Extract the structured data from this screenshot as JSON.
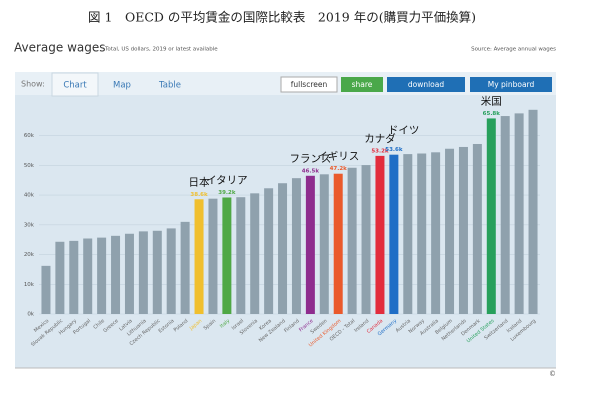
{
  "page_title": "図 1　OECD の平均賃金の国際比較表　2019 年の(購買力平価換算)",
  "header": {
    "title": "Average wages",
    "subtitle": "Total, US dollars, 2019 or latest available",
    "source": "Source: Average annual wages"
  },
  "toolbar": {
    "show": "Show:",
    "tabs": [
      "Chart",
      "Map",
      "Table"
    ],
    "buttons": [
      "fullscreen",
      "share",
      "download",
      "My pinboard"
    ]
  },
  "copyright": "©",
  "chart_data": {
    "type": "bar",
    "categories": [
      "Mexico",
      "Slovak Republic",
      "Hungary",
      "Portugal",
      "Chile",
      "Greece",
      "Latvia",
      "Lithuania",
      "Czech Republic",
      "Estonia",
      "Poland",
      "Japan",
      "Spain",
      "Italy",
      "Israel",
      "Slovenia",
      "Korea",
      "New Zealand",
      "Finland",
      "France",
      "Sweden",
      "United Kingdom",
      "OECD - Total",
      "Ireland",
      "Canada",
      "Germany",
      "Austria",
      "Norway",
      "Australia",
      "Belgium",
      "Netherlands",
      "Denmark",
      "United States",
      "Switzerland",
      "Iceland",
      "Luxembourg"
    ],
    "values": [
      16200,
      24300,
      24600,
      25400,
      25700,
      26300,
      27000,
      27800,
      28000,
      28800,
      31000,
      38600,
      38800,
      39200,
      39300,
      40600,
      42300,
      44000,
      45700,
      46500,
      47000,
      47200,
      49200,
      50100,
      53200,
      53600,
      53800,
      54000,
      54400,
      55600,
      56200,
      57200,
      65800,
      66600,
      67500,
      68700
    ],
    "value_labels": [
      null,
      null,
      null,
      null,
      null,
      null,
      null,
      null,
      null,
      null,
      null,
      "38.6k",
      null,
      "39.2k",
      null,
      null,
      null,
      null,
      null,
      "46.5k",
      null,
      "47.2k",
      null,
      null,
      "53.2k",
      "53.6k",
      null,
      null,
      null,
      null,
      null,
      null,
      "65.8k",
      null,
      null,
      null
    ],
    "colors": [
      "#8fa1ad",
      "#8fa1ad",
      "#8fa1ad",
      "#8fa1ad",
      "#8fa1ad",
      "#8fa1ad",
      "#8fa1ad",
      "#8fa1ad",
      "#8fa1ad",
      "#8fa1ad",
      "#8fa1ad",
      "#f0bf2e",
      "#8fa1ad",
      "#4fa845",
      "#8fa1ad",
      "#8fa1ad",
      "#8fa1ad",
      "#8fa1ad",
      "#8fa1ad",
      "#8e2d8e",
      "#8fa1ad",
      "#ea5a2c",
      "#8fa1ad",
      "#8fa1ad",
      "#e22d3d",
      "#1f6ec6",
      "#8fa1ad",
      "#8fa1ad",
      "#8fa1ad",
      "#8fa1ad",
      "#8fa1ad",
      "#8fa1ad",
      "#27a05c",
      "#8fa1ad",
      "#8fa1ad",
      "#8fa1ad"
    ],
    "ylim": [
      0,
      72000
    ],
    "yticks": [
      {
        "value": 0,
        "label": "0k"
      },
      {
        "value": 10000,
        "label": "10k"
      },
      {
        "value": 20000,
        "label": "20k"
      },
      {
        "value": 30000,
        "label": "30k"
      },
      {
        "value": 40000,
        "label": "40k"
      },
      {
        "value": 50000,
        "label": "50k"
      },
      {
        "value": 60000,
        "label": "60k"
      }
    ],
    "grid": true,
    "annotations": [
      {
        "text": "日本",
        "category": "Japan"
      },
      {
        "text": "イタリア",
        "category": "Italy"
      },
      {
        "text": "フランス",
        "category": "France"
      },
      {
        "text": "イギリス",
        "category": "United Kingdom"
      },
      {
        "text": "カナダ",
        "category": "Canada"
      },
      {
        "text": "ドイツ",
        "category": "Germany"
      },
      {
        "text": "米国",
        "category": "United States"
      }
    ]
  }
}
